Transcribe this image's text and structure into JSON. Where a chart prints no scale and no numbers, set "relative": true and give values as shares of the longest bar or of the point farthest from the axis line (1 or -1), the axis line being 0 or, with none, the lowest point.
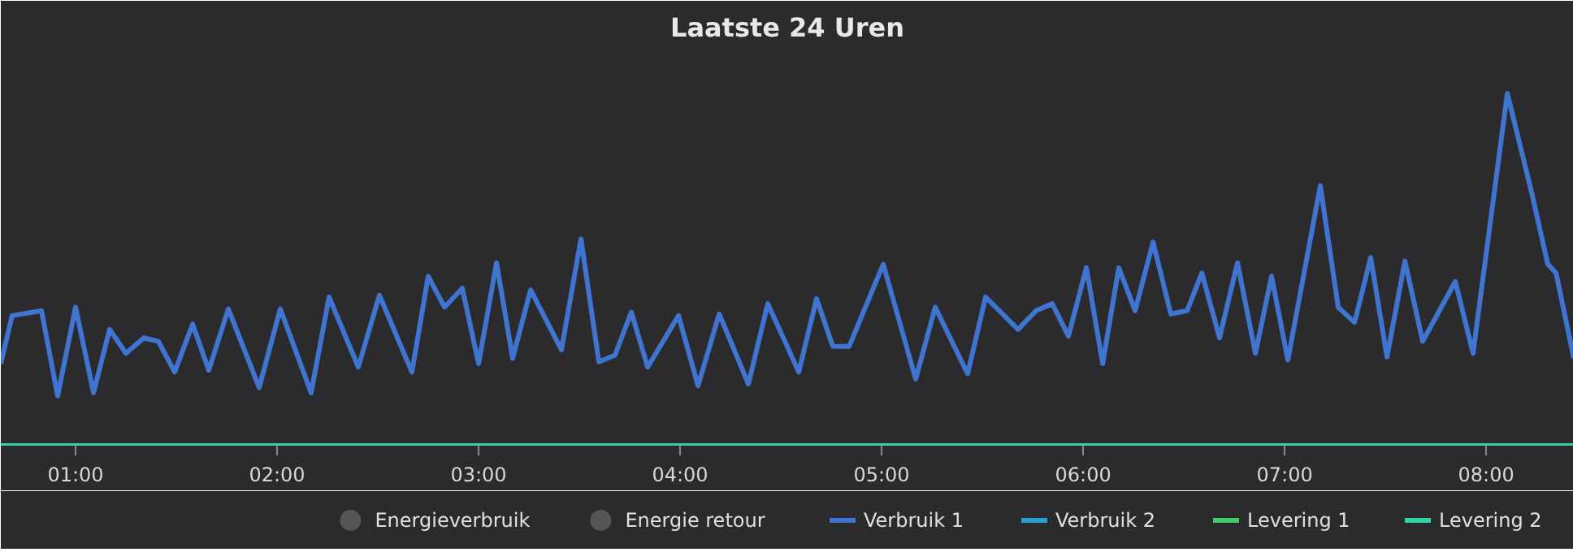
{
  "chart_data": {
    "type": "line",
    "title": "Laatste 24 Uren",
    "relative": true,
    "legend": "bottom",
    "marker": "none",
    "line_style": "solid",
    "xlim": [
      0.629,
      8.435
    ],
    "xticks": [
      {
        "value": 1,
        "label": "01:00"
      },
      {
        "value": 2,
        "label": "02:00"
      },
      {
        "value": 3,
        "label": "03:00"
      },
      {
        "value": 4,
        "label": "04:00"
      },
      {
        "value": 5,
        "label": "05:00"
      },
      {
        "value": 6,
        "label": "06:00"
      },
      {
        "value": 7,
        "label": "07:00"
      },
      {
        "value": 8,
        "label": "08:00"
      }
    ],
    "series": [
      {
        "name": "Energieverbruik",
        "type": "scatter",
        "color": "#555558",
        "values": [
          null
        ]
      },
      {
        "name": "Energie retour",
        "type": "scatter",
        "color": "#555558",
        "values": [
          null
        ]
      },
      {
        "name": "Verbruik 1",
        "color": "#3f74d0",
        "x": [
          0.629,
          0.685,
          0.831,
          0.911,
          1.0,
          1.089,
          1.169,
          1.25,
          1.339,
          1.411,
          1.492,
          1.581,
          1.661,
          1.758,
          1.911,
          2.016,
          2.169,
          2.258,
          2.403,
          2.508,
          2.669,
          2.75,
          2.831,
          2.919,
          3.0,
          3.089,
          3.169,
          3.258,
          3.411,
          3.508,
          3.597,
          3.677,
          3.758,
          3.839,
          3.992,
          4.089,
          4.194,
          4.339,
          4.435,
          4.589,
          4.677,
          4.758,
          4.839,
          5.008,
          5.169,
          5.266,
          5.427,
          5.516,
          5.677,
          5.766,
          5.847,
          5.927,
          6.016,
          6.097,
          6.177,
          6.258,
          6.347,
          6.435,
          6.516,
          6.589,
          6.677,
          6.766,
          6.855,
          6.935,
          7.016,
          7.177,
          7.266,
          7.347,
          7.427,
          7.508,
          7.597,
          7.685,
          7.847,
          7.935,
          8.105,
          8.226,
          8.306,
          8.347,
          8.435
        ],
        "values": [
          0.233,
          0.369,
          0.383,
          0.141,
          0.393,
          0.15,
          0.33,
          0.262,
          0.306,
          0.296,
          0.209,
          0.345,
          0.214,
          0.388,
          0.165,
          0.388,
          0.15,
          0.422,
          0.223,
          0.427,
          0.209,
          0.481,
          0.393,
          0.447,
          0.233,
          0.519,
          0.248,
          0.442,
          0.272,
          0.587,
          0.238,
          0.257,
          0.379,
          0.223,
          0.369,
          0.17,
          0.374,
          0.175,
          0.403,
          0.209,
          0.417,
          0.282,
          0.282,
          0.515,
          0.189,
          0.393,
          0.204,
          0.422,
          0.33,
          0.383,
          0.403,
          0.311,
          0.505,
          0.233,
          0.505,
          0.383,
          0.578,
          0.374,
          0.383,
          0.49,
          0.306,
          0.519,
          0.262,
          0.481,
          0.243,
          0.738,
          0.393,
          0.35,
          0.534,
          0.252,
          0.524,
          0.296,
          0.466,
          0.262,
          1,
          0.718,
          0.515,
          0.49,
          0.248
        ]
      },
      {
        "name": "Verbruik 2",
        "color": "#2a9fd6",
        "values": [
          null
        ]
      },
      {
        "name": "Levering 1",
        "color": "#3fcf6a",
        "values": [
          null
        ]
      },
      {
        "name": "Levering 2",
        "color": "#2ed3a6",
        "x": [
          0.629,
          8.435
        ],
        "values": [
          0,
          0
        ]
      }
    ]
  }
}
